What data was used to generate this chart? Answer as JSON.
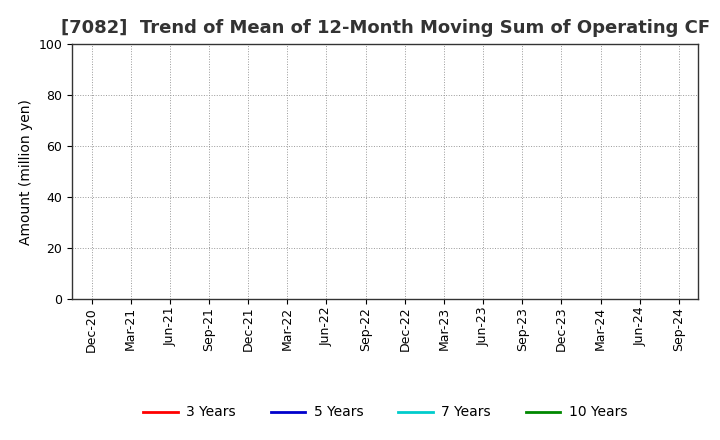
{
  "title": "[7082]  Trend of Mean of 12-Month Moving Sum of Operating CF",
  "ylabel": "Amount (million yen)",
  "ylim": [
    0,
    100
  ],
  "yticks": [
    0,
    20,
    40,
    60,
    80,
    100
  ],
  "background_color": "#ffffff",
  "plot_bg_color": "#ffffff",
  "grid_color": "#999999",
  "spine_color": "#333333",
  "x_labels": [
    "Dec-20",
    "Mar-21",
    "Jun-21",
    "Sep-21",
    "Dec-21",
    "Mar-22",
    "Jun-22",
    "Sep-22",
    "Dec-22",
    "Mar-23",
    "Jun-23",
    "Sep-23",
    "Dec-23",
    "Mar-24",
    "Jun-24",
    "Sep-24"
  ],
  "legend_entries": [
    {
      "label": "3 Years",
      "color": "#ff0000"
    },
    {
      "label": "5 Years",
      "color": "#0000cc"
    },
    {
      "label": "7 Years",
      "color": "#00cccc"
    },
    {
      "label": "10 Years",
      "color": "#008800"
    }
  ],
  "title_fontsize": 13,
  "axis_label_fontsize": 10,
  "tick_fontsize": 9,
  "legend_fontsize": 10
}
